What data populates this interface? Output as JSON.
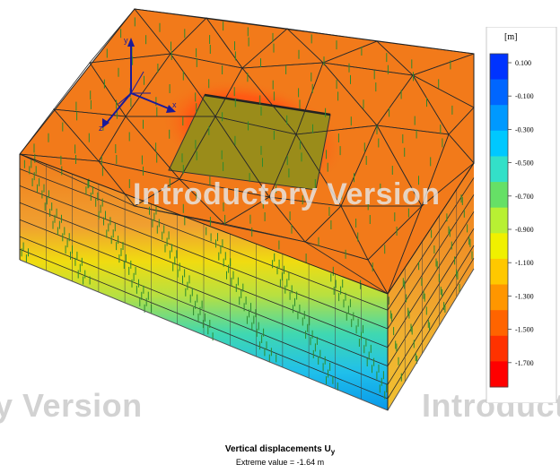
{
  "legend": {
    "unit": "[m]",
    "labels": [
      "0.100",
      "-0.100",
      "-0.300",
      "-0.500",
      "-0.700",
      "-0.900",
      "-1.100",
      "-1.300",
      "-1.500",
      "-1.700"
    ],
    "colors": [
      "#0033ff",
      "#0066ff",
      "#0099ff",
      "#00c8ff",
      "#33e0c8",
      "#66e066",
      "#b8f033",
      "#f0f000",
      "#ffc800",
      "#ff9600",
      "#ff6400",
      "#ff3200",
      "#ff0000"
    ]
  },
  "watermarks": {
    "center": "Introductory Version",
    "bottom_left": "y Version",
    "bottom_right": "Introduct"
  },
  "axes": {
    "x": "x",
    "y": "y",
    "z": "z"
  },
  "caption": {
    "title": "Vertical displacements U",
    "title_sub": "y",
    "extreme": "Extreme value = -1.64 m"
  }
}
